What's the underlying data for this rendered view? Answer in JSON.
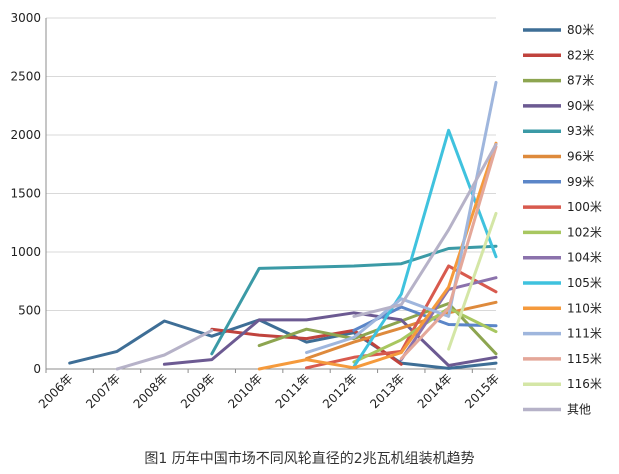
{
  "caption": "图1 历年中国市场不同风轮直径的2兆瓦机组装机趋势",
  "chart_data": {
    "type": "line",
    "title": "",
    "xlabel": "",
    "ylabel": "",
    "categories": [
      "2006年",
      "2007年",
      "2008年",
      "2009年",
      "2010年",
      "2011年",
      "2012年",
      "2013年",
      "2014年",
      "2015年"
    ],
    "ylim": [
      0,
      3000
    ],
    "yticks": [
      0,
      500,
      1000,
      1500,
      2000,
      2500,
      3000
    ],
    "grid": "horizontal",
    "legend_position": "right",
    "series": [
      {
        "name": "80米",
        "color": "#3e6e96",
        "values": [
          50,
          150,
          410,
          280,
          420,
          230,
          310,
          50,
          5,
          50
        ]
      },
      {
        "name": "82米",
        "color": "#c0433d",
        "values": [
          null,
          null,
          null,
          340,
          290,
          260,
          330,
          40,
          null,
          null
        ]
      },
      {
        "name": "87米",
        "color": "#8da550",
        "values": [
          null,
          null,
          null,
          null,
          200,
          340,
          260,
          410,
          560,
          130
        ]
      },
      {
        "name": "90米",
        "color": "#6c5a92",
        "values": [
          null,
          null,
          40,
          80,
          420,
          420,
          480,
          420,
          30,
          100
        ]
      },
      {
        "name": "93米",
        "color": "#3b9aa6",
        "values": [
          null,
          null,
          null,
          130,
          860,
          870,
          880,
          900,
          1030,
          1050
        ]
      },
      {
        "name": "96米",
        "color": "#de8a3c",
        "values": [
          null,
          null,
          null,
          null,
          null,
          90,
          230,
          350,
          480,
          570
        ]
      },
      {
        "name": "99米",
        "color": "#5b86c8",
        "values": [
          null,
          null,
          null,
          null,
          null,
          null,
          330,
          530,
          380,
          370
        ]
      },
      {
        "name": "100米",
        "color": "#d85a4e",
        "values": [
          null,
          null,
          null,
          null,
          null,
          10,
          100,
          150,
          880,
          660
        ]
      },
      {
        "name": "102米",
        "color": "#a8c760",
        "values": [
          null,
          null,
          null,
          null,
          null,
          null,
          60,
          250,
          520,
          320
        ]
      },
      {
        "name": "104米",
        "color": "#8b72ac",
        "values": [
          null,
          null,
          null,
          null,
          null,
          null,
          null,
          80,
          680,
          780
        ]
      },
      {
        "name": "105米",
        "color": "#3fc2de",
        "values": [
          null,
          null,
          null,
          null,
          null,
          null,
          20,
          640,
          2040,
          960
        ]
      },
      {
        "name": "110米",
        "color": "#f59a3c",
        "values": [
          null,
          null,
          null,
          null,
          0,
          80,
          10,
          140,
          700,
          1930
        ]
      },
      {
        "name": "111米",
        "color": "#9fb6dd",
        "values": [
          null,
          null,
          null,
          null,
          null,
          140,
          270,
          600,
          450,
          2450
        ]
      },
      {
        "name": "115米",
        "color": "#e4a799",
        "values": [
          null,
          null,
          null,
          null,
          null,
          null,
          null,
          90,
          520,
          1900
        ]
      },
      {
        "name": "116米",
        "color": "#d4e6a6",
        "values": [
          null,
          null,
          null,
          null,
          null,
          null,
          null,
          null,
          170,
          1330
        ]
      },
      {
        "name": "其他",
        "color": "#b6b2c8",
        "values": [
          null,
          0,
          120,
          330,
          null,
          null,
          450,
          550,
          1190,
          1920
        ]
      }
    ]
  }
}
